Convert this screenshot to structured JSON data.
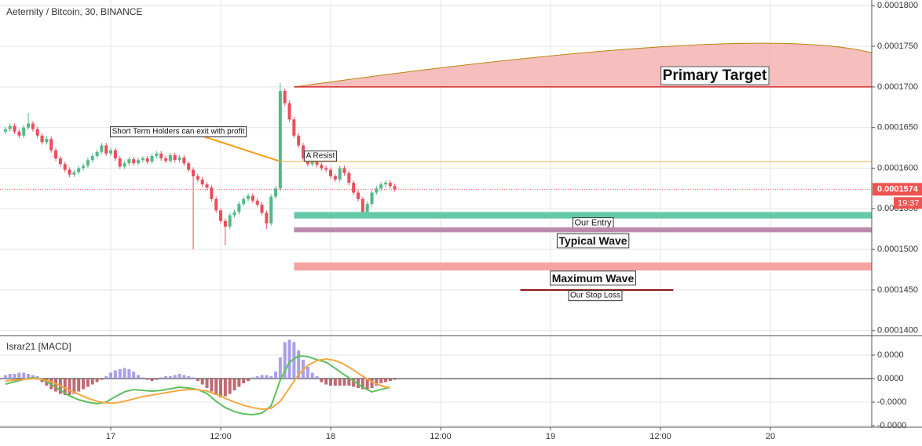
{
  "chart_data": [
    {
      "type": "candlestick",
      "title": "Aeternity / Bitcoin, 30, BINANCE",
      "x": [
        -11.5,
        -11,
        -10.5,
        -10,
        -9.5,
        -9,
        -8.5,
        -8,
        -7.5,
        -7,
        -6.5,
        -6,
        -5.5,
        -5,
        -4.5,
        -4,
        -3.5,
        -3,
        -2.5,
        -2,
        -1.5,
        -1,
        -0.5,
        0,
        0.5,
        1,
        1.5,
        2,
        2.5,
        3,
        3.5,
        4,
        4.5,
        5,
        5.5,
        6,
        6.5,
        7,
        7.5,
        8,
        8.5,
        9,
        9.5,
        10,
        10.5,
        11,
        11.5,
        12,
        12.5,
        13,
        13.5,
        14,
        14.5,
        15,
        15.5,
        16,
        16.5,
        17,
        17.5,
        18,
        18.5,
        19,
        19.5,
        20,
        20.5,
        21,
        21.5,
        22,
        22.5,
        23,
        23.5,
        24,
        24.5,
        25,
        25.5,
        26,
        26.5,
        27,
        27.5,
        28,
        28.5,
        29,
        29.5,
        30,
        30.5,
        31
      ],
      "open": [
        0.0001645,
        0.0001648,
        0.0001652,
        0.0001645,
        0.000164,
        0.000165,
        0.0001655,
        0.0001648,
        0.000164,
        0.0001632,
        0.0001636,
        0.0001622,
        0.0001612,
        0.0001605,
        0.0001598,
        0.0001592,
        0.0001595,
        0.00016,
        0.0001603,
        0.000161,
        0.0001615,
        0.000162,
        0.0001628,
        0.0001618,
        0.0001622,
        0.0001612,
        0.0001602,
        0.0001606,
        0.0001611,
        0.0001606,
        0.000161,
        0.0001612,
        0.0001608,
        0.0001615,
        0.0001618,
        0.0001612,
        0.0001609,
        0.0001616,
        0.000161,
        0.0001613,
        0.0001606,
        0.0001598,
        0.000159,
        0.0001586,
        0.000158,
        0.0001576,
        0.0001562,
        0.0001548,
        0.0001535,
        0.0001528,
        0.0001542,
        0.0001546,
        0.0001556,
        0.0001562,
        0.0001566,
        0.000156,
        0.0001555,
        0.0001545,
        0.0001532,
        0.0001565,
        0.0001575,
        0.0001695,
        0.000168,
        0.000166,
        0.000164,
        0.0001628,
        0.0001612,
        0.0001605,
        0.0001608,
        0.0001604,
        0.00016,
        0.0001598,
        0.000159,
        0.0001586,
        0.00016,
        0.0001594,
        0.0001582,
        0.000157,
        0.0001562,
        0.0001546,
        0.0001556,
        0.000157,
        0.0001575,
        0.000158,
        0.0001582,
        0.0001578
      ],
      "high": [
        0.0001651,
        0.0001655,
        0.0001655,
        0.0001648,
        0.0001653,
        0.0001668,
        0.0001658,
        0.0001651,
        0.0001643,
        0.0001639,
        0.0001639,
        0.0001625,
        0.0001615,
        0.0001608,
        0.0001601,
        0.0001598,
        0.0001603,
        0.0001606,
        0.0001613,
        0.0001618,
        0.0001623,
        0.0001631,
        0.0001631,
        0.0001625,
        0.0001625,
        0.0001615,
        0.0001609,
        0.0001614,
        0.0001614,
        0.0001613,
        0.0001615,
        0.0001615,
        0.0001618,
        0.0001621,
        0.0001621,
        0.0001615,
        0.0001619,
        0.0001619,
        0.0001616,
        0.0001616,
        0.0001609,
        0.0001601,
        0.0001593,
        0.0001589,
        0.0001583,
        0.0001579,
        0.0001565,
        0.0001551,
        0.0001538,
        0.0001545,
        0.0001549,
        0.0001559,
        0.0001565,
        0.0001569,
        0.0001569,
        0.0001563,
        0.0001558,
        0.0001548,
        0.0001568,
        0.0001578,
        0.0001705,
        0.0001698,
        0.0001683,
        0.0001663,
        0.0001643,
        0.0001631,
        0.0001615,
        0.0001611,
        0.0001611,
        0.0001607,
        0.0001603,
        0.0001601,
        0.0001593,
        0.0001603,
        0.0001603,
        0.0001597,
        0.0001585,
        0.0001573,
        0.0001565,
        0.0001559,
        0.0001573,
        0.0001578,
        0.0001583,
        0.0001585,
        0.0001585,
        0.0001581
      ],
      "low": [
        0.0001642,
        0.0001645,
        0.0001642,
        0.0001637,
        0.0001637,
        0.0001647,
        0.0001645,
        0.0001637,
        0.0001629,
        0.0001629,
        0.0001619,
        0.0001609,
        0.0001602,
        0.0001595,
        0.0001589,
        0.0001589,
        0.0001592,
        0.0001597,
        0.00016,
        0.0001607,
        0.0001612,
        0.0001617,
        0.0001615,
        0.0001615,
        0.0001609,
        0.0001599,
        0.0001599,
        0.0001603,
        0.0001603,
        0.0001603,
        0.0001607,
        0.0001605,
        0.0001605,
        0.0001612,
        0.0001609,
        0.0001606,
        0.0001606,
        0.0001607,
        0.0001607,
        0.0001603,
        0.0001595,
        0.00015,
        0.0001583,
        0.0001577,
        0.0001573,
        0.0001559,
        0.0001545,
        0.0001532,
        0.0001505,
        0.0001525,
        0.0001539,
        0.0001543,
        0.0001553,
        0.0001559,
        0.0001557,
        0.0001552,
        0.0001542,
        0.0001525,
        0.0001529,
        0.0001562,
        0.0001572,
        0.0001677,
        0.0001657,
        0.0001637,
        0.0001625,
        0.0001609,
        0.0001602,
        0.0001602,
        0.0001601,
        0.0001597,
        0.0001595,
        0.0001587,
        0.0001583,
        0.0001583,
        0.0001591,
        0.0001579,
        0.0001567,
        0.0001559,
        0.000154,
        0.0001543,
        0.0001553,
        0.0001567,
        0.0001572,
        0.0001577,
        0.0001575,
        0.0001571
      ],
      "close": [
        0.0001648,
        0.0001652,
        0.0001645,
        0.000164,
        0.000165,
        0.0001655,
        0.0001648,
        0.000164,
        0.0001632,
        0.0001636,
        0.0001622,
        0.0001612,
        0.0001605,
        0.0001598,
        0.0001592,
        0.0001595,
        0.00016,
        0.0001603,
        0.000161,
        0.0001615,
        0.000162,
        0.0001628,
        0.0001618,
        0.0001622,
        0.0001612,
        0.0001602,
        0.0001606,
        0.0001611,
        0.0001606,
        0.000161,
        0.0001612,
        0.0001608,
        0.0001615,
        0.0001618,
        0.0001612,
        0.0001609,
        0.0001616,
        0.000161,
        0.0001613,
        0.0001606,
        0.0001598,
        0.000159,
        0.0001586,
        0.000158,
        0.0001576,
        0.0001562,
        0.0001548,
        0.0001535,
        0.0001528,
        0.0001542,
        0.0001546,
        0.0001556,
        0.0001562,
        0.0001566,
        0.000156,
        0.0001555,
        0.0001545,
        0.0001532,
        0.0001565,
        0.0001575,
        0.0001695,
        0.000168,
        0.000166,
        0.000164,
        0.0001628,
        0.0001612,
        0.0001605,
        0.0001608,
        0.0001604,
        0.00016,
        0.0001598,
        0.000159,
        0.0001586,
        0.00016,
        0.0001594,
        0.0001582,
        0.000157,
        0.0001562,
        0.0001546,
        0.0001556,
        0.000157,
        0.0001575,
        0.000158,
        0.0001582,
        0.0001578,
        0.0001574
      ],
      "up_color": "#53b987",
      "down_color": "#eb4d5c",
      "xlim": [
        -12.09,
        83.06
      ],
      "ylim": [
        0.0001394,
        0.0001807
      ],
      "xticks": [
        {
          "value": 0,
          "label": "17"
        },
        {
          "value": 12,
          "label": "12:00"
        },
        {
          "value": 24,
          "label": "18"
        },
        {
          "value": 36,
          "label": "12:00"
        },
        {
          "value": 48,
          "label": "19"
        },
        {
          "value": 60,
          "label": "12:00"
        },
        {
          "value": 72,
          "label": "20"
        }
      ],
      "yticks": [
        {
          "value": 0.00014,
          "label": "0.0001400"
        },
        {
          "value": 0.000145,
          "label": "0.0001450"
        },
        {
          "value": 0.00015,
          "label": "0.0001500"
        },
        {
          "value": 0.000155,
          "label": "0.0001550"
        },
        {
          "value": 0.00016,
          "label": "0.0001600"
        },
        {
          "value": 0.000165,
          "label": "0.0001650"
        },
        {
          "value": 0.00017,
          "label": "0.0001700"
        },
        {
          "value": 0.000175,
          "label": "0.0001750"
        },
        {
          "value": 0.00018,
          "label": "0.0001800"
        }
      ],
      "grid": true,
      "last_price": 0.0001574,
      "last_color": "#ef5350",
      "countdown": "19:37",
      "target_area": {
        "label": "Primary Target",
        "x": [
          20,
          61,
          83.06
        ],
        "values": [
          0.00017,
          0.000175,
          0.0001742
        ],
        "color": "#f6b3b3",
        "edge_color": "#b8860b",
        "line_color": "#d32f2f"
      },
      "zones": [
        {
          "label": "Our Entry",
          "start": 20,
          "from": 0.0001546,
          "to": 0.0001538,
          "color": "#63c9a8"
        },
        {
          "label": "Typical Wave",
          "start": 20,
          "from": 0.0001527,
          "to": 0.0001521,
          "color": "#b98aab"
        },
        {
          "label": "Maximum Wave",
          "start": 20,
          "from": 0.0001484,
          "to": 0.0001474,
          "color": "#f7a3a3"
        }
      ],
      "lines": [
        {
          "label": "A Resist",
          "x": [
            18.3,
            83.06
          ],
          "values": [
            0.0001608,
            0.0001608
          ],
          "color": "#f5b041"
        },
        {
          "label": "Short Term Holders can exit with profit",
          "x": [
            8.5,
            18.3
          ],
          "values": [
            0.0001645,
            0.0001609
          ],
          "color": "#f39c12"
        },
        {
          "label": "Our Stop Loss",
          "x": [
            44.7,
            61.4
          ],
          "values": [
            0.000145,
            0.000145
          ],
          "color": "#8b1a1a"
        }
      ]
    },
    {
      "type": "macd",
      "title": "Israr21 [MACD]",
      "x": [
        -11.5,
        -11,
        -10.5,
        -10,
        -9.5,
        -9,
        -8.5,
        -8,
        -7.5,
        -7,
        -6.5,
        -6,
        -5.5,
        -5,
        -4.5,
        -4,
        -3.5,
        -3,
        -2.5,
        -2,
        -1.5,
        -1,
        -0.5,
        0,
        0.5,
        1,
        1.5,
        2,
        2.5,
        3,
        3.5,
        4,
        4.5,
        5,
        5.5,
        6,
        6.5,
        7,
        7.5,
        8,
        8.5,
        9,
        9.5,
        10,
        10.5,
        11,
        11.5,
        12,
        12.5,
        13,
        13.5,
        14,
        14.5,
        15,
        15.5,
        16,
        16.5,
        17,
        17.5,
        18,
        18.5,
        19,
        19.5,
        20,
        20.5,
        21,
        21.5,
        22,
        22.5,
        23,
        23.5,
        24,
        24.5,
        25,
        25.5,
        26,
        26.5,
        27,
        27.5,
        28,
        28.5,
        29,
        29.5,
        30,
        30.5,
        31
      ],
      "histogram": [
        3e-08,
        4e-08,
        4e-08,
        5e-08,
        5e-08,
        4e-08,
        3e-08,
        2e-08,
        -3e-08,
        -6e-08,
        -9e-08,
        -1.1e-07,
        -1.3e-07,
        -1.4e-07,
        -1.4e-07,
        -1.3e-07,
        -1.1e-07,
        -9e-08,
        -7e-08,
        -5e-08,
        -3e-08,
        -1e-08,
        2e-08,
        5e-08,
        7e-08,
        8e-08,
        9e-08,
        8e-08,
        6e-08,
        3e-08,
        1e-08,
        -1e-08,
        -2e-08,
        -1e-08,
        1e-08,
        2e-08,
        2e-08,
        3e-08,
        4e-08,
        3e-08,
        2e-08,
        1e-08,
        -2e-08,
        -5e-08,
        -8e-08,
        -1.1e-07,
        -1.4e-07,
        -1.6e-07,
        -1.5e-07,
        -1.3e-07,
        -1e-07,
        -7e-08,
        -4e-08,
        -2e-08,
        1e-08,
        2e-08,
        3e-08,
        3e-08,
        2e-08,
        6e-08,
        1.8e-07,
        3.1e-07,
        3.3e-07,
        3.1e-07,
        2.4e-07,
        1.6e-07,
        1e-07,
        5e-08,
        2e-08,
        -3e-08,
        -5e-08,
        -6e-08,
        -6e-08,
        -6e-08,
        -6e-08,
        -6e-08,
        -7e-08,
        -8e-08,
        -9e-08,
        -9e-08,
        -8e-08,
        -6e-08,
        -4e-08,
        -3e-08,
        -2e-08,
        -1e-08
      ],
      "up_color": "#9a8fe0",
      "down_color": "#b5505a",
      "series": [
        {
          "color": "#5cbf5c",
          "x": [
            -11.5,
            -10.5,
            -9.5,
            -8.5,
            -7.5,
            -6.5,
            -5.5,
            -4.5,
            -3.5,
            -2.5,
            -1.5,
            -0.5,
            0.5,
            1.5,
            2.5,
            3.5,
            4.5,
            5.5,
            6.5,
            7.5,
            8.5,
            9.5,
            10.5,
            11.5,
            12.5,
            13.5,
            14.5,
            15.5,
            16.5,
            17.5,
            18.5,
            19.5,
            20.5,
            21.5,
            22.5,
            23.5,
            24.5,
            25.5,
            26.5,
            27.5,
            28.5,
            29.5,
            30.5
          ],
          "values": [
            -4.7e-08,
            -2.7e-08,
            -7e-09,
            7e-09,
            -7e-09,
            -4.7e-08,
            -1e-07,
            -1.47e-07,
            -1.8e-07,
            -2e-07,
            -2.13e-07,
            -2e-07,
            -1.53e-07,
            -1.13e-07,
            -9.3e-08,
            -1e-07,
            -1.07e-07,
            -1e-07,
            -8.7e-08,
            -7.3e-08,
            -8e-08,
            -9.3e-08,
            -1.27e-07,
            -1.93e-07,
            -2.47e-07,
            -2.8e-07,
            -3e-07,
            -3.07e-07,
            -2.93e-07,
            -2.33e-07,
            -1.3e-08,
            1.4e-07,
            1.93e-07,
            1.87e-07,
            1.6e-07,
            1.4e-07,
            8.7e-08,
            3.3e-08,
            -2e-08,
            -7.3e-08,
            -1.13e-07,
            -9.3e-08,
            -7.3e-08
          ]
        },
        {
          "color": "#f5a742",
          "x": [
            -11.5,
            -10.5,
            -9.5,
            -8.5,
            -7.5,
            -6.5,
            -5.5,
            -4.5,
            -3.5,
            -2.5,
            -1.5,
            -0.5,
            0.5,
            1.5,
            2.5,
            3.5,
            4.5,
            5.5,
            6.5,
            7.5,
            8.5,
            9.5,
            10.5,
            11.5,
            12.5,
            13.5,
            14.5,
            15.5,
            16.5,
            17.5,
            18.5,
            19.5,
            20.5,
            21.5,
            22.5,
            23.5,
            24.5,
            25.5,
            26.5,
            27.5,
            28.5,
            29.5,
            30.5
          ],
          "values": [
            -2e-08,
            -1.3e-08,
            -7e-09,
            0,
            -7e-09,
            -2.7e-08,
            -6e-08,
            -1e-07,
            -1.33e-07,
            -1.67e-07,
            -1.93e-07,
            -2.07e-07,
            -2.07e-07,
            -1.93e-07,
            -1.73e-07,
            -1.53e-07,
            -1.4e-07,
            -1.27e-07,
            -1.13e-07,
            -1e-07,
            -9.3e-08,
            -9.3e-08,
            -1.07e-07,
            -1.33e-07,
            -1.67e-07,
            -2e-07,
            -2.27e-07,
            -2.47e-07,
            -2.6e-07,
            -2.53e-07,
            -1.93e-07,
            -8e-08,
            3.3e-08,
            1.13e-07,
            1.53e-07,
            1.67e-07,
            1.53e-07,
            1.2e-07,
            7.3e-08,
            2e-08,
            -2.7e-08,
            -6e-08,
            -8e-08
          ]
        }
      ],
      "ylim": [
        -4.13e-07,
        3.53e-07
      ],
      "yticks": [
        {
          "value": 2e-07,
          "label": "0.0000"
        },
        {
          "value": 0,
          "label": "0.0000"
        },
        {
          "value": -2e-07,
          "label": "-0.0000"
        },
        {
          "value": -4e-07,
          "label": "-0.0000"
        }
      ]
    }
  ]
}
